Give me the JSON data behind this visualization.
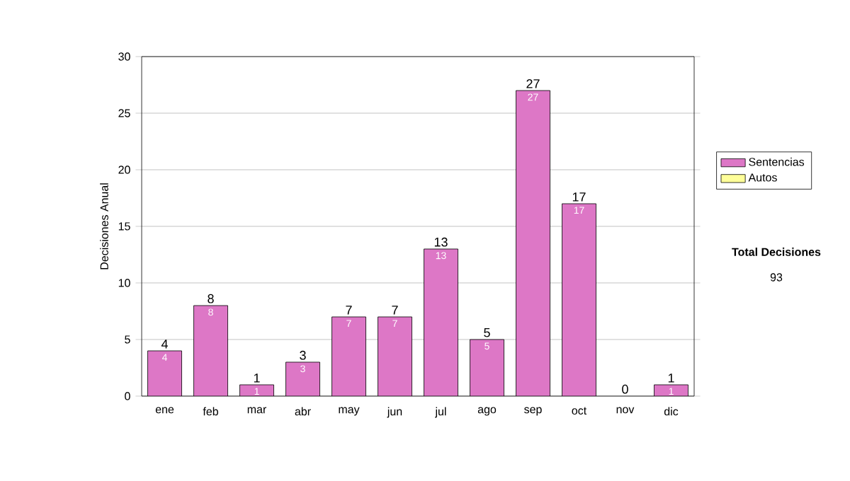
{
  "chart_data": {
    "type": "bar",
    "stacked": true,
    "ylabel": "Decisiones Anual",
    "categories": [
      "ene",
      "feb",
      "mar",
      "abr",
      "may",
      "jun",
      "jul",
      "ago",
      "sep",
      "oct",
      "nov",
      "dic"
    ],
    "series": [
      {
        "name": "Sentencias",
        "color": "#dd77c6",
        "values": [
          4,
          8,
          1,
          3,
          7,
          7,
          13,
          5,
          27,
          17,
          0,
          1
        ],
        "value_labels": [
          "4",
          "8",
          "1",
          "3",
          "7",
          "7",
          "13",
          "5",
          "27",
          "17",
          null,
          "1"
        ]
      },
      {
        "name": "Autos",
        "color": "#ffff99",
        "values": [
          0,
          0,
          0,
          0,
          0,
          0,
          0,
          0,
          0,
          0,
          0,
          0
        ]
      }
    ],
    "totals": [
      "4",
      "8",
      "1",
      "3",
      "7",
      "7",
      "13",
      "5",
      "27",
      "17",
      "0",
      "1"
    ],
    "ylim": [
      0,
      30
    ],
    "yticks": [
      0,
      5,
      10,
      15,
      20,
      25,
      30
    ],
    "grid": "y",
    "legend": "right",
    "annotations": [
      "Total Decisiones",
      "93"
    ]
  }
}
